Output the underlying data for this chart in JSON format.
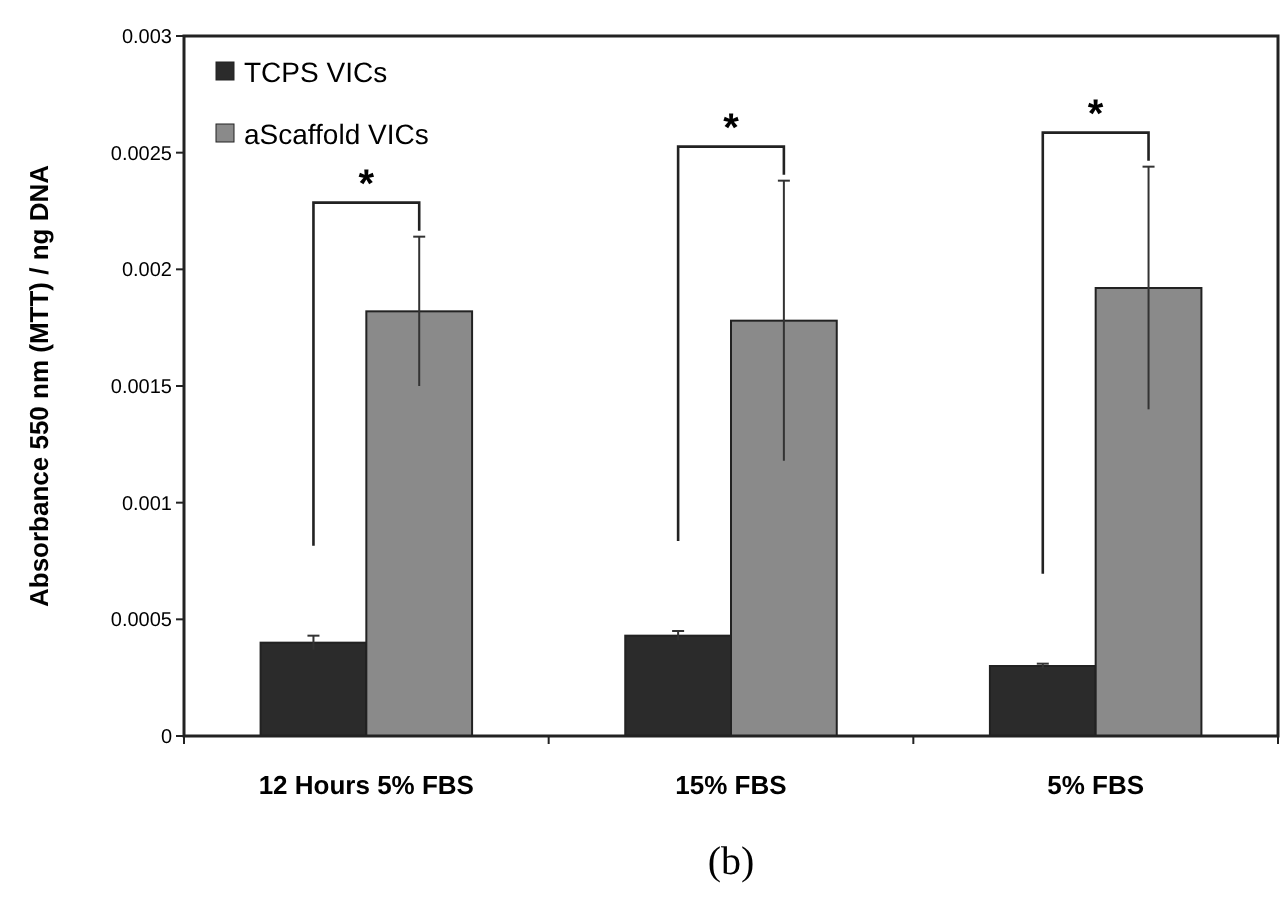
{
  "chart_data": {
    "type": "bar",
    "ylabel": "Absorbance 550 nm (MTT) / ng DNA",
    "categories": [
      "12 Hours 5% FBS",
      "15% FBS",
      "5% FBS"
    ],
    "series": [
      {
        "name": "TCPS VICs",
        "color": "#2b2b2b",
        "values": [
          0.0004,
          0.00043,
          0.0003
        ],
        "errors": [
          3e-05,
          2e-05,
          1e-05
        ]
      },
      {
        "name": "aScaffold VICs",
        "color": "#8a8a8a",
        "values": [
          0.00182,
          0.00178,
          0.00192
        ],
        "errors": [
          0.00032,
          0.0006,
          0.00052
        ]
      }
    ],
    "ylim": [
      0,
      0.003
    ],
    "yticks": [
      0,
      0.0005,
      0.001,
      0.0015,
      0.002,
      0.0025,
      0.003
    ],
    "grid": false,
    "legend": "top left",
    "annotations": [
      "*",
      "*",
      "*",
      "(b)"
    ]
  }
}
